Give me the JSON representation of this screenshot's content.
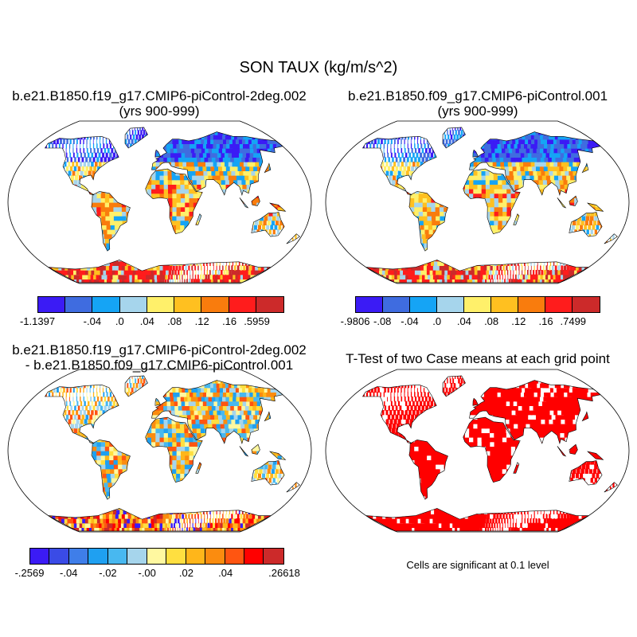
{
  "title": "SON TAUX (kg/m/s^2)",
  "panels": [
    {
      "id": "p1",
      "title_lines": [
        "b.e21.B1850.f19_g17.CMIP6-piControl-2deg.002",
        "(yrs 900-999)"
      ],
      "colorbar": {
        "colors": [
          "#3b1bf5",
          "#3f6ce0",
          "#15a4f5",
          "#a6d5ec",
          "#fff06a",
          "#ffc020",
          "#f97c0d",
          "#ff1c1c",
          "#cc2a2a"
        ],
        "labels": [
          "-1.1397",
          "-.04",
          ".0",
          ".04",
          ".08",
          ".12",
          ".16",
          ".5959"
        ]
      }
    },
    {
      "id": "p2",
      "title_lines": [
        "b.e21.B1850.f09_g17.CMIP6-piControl.001",
        "(yrs 900-999)"
      ],
      "colorbar": {
        "colors": [
          "#3b1bf5",
          "#3f6ce0",
          "#15a4f5",
          "#a6d5ec",
          "#fff06a",
          "#ffc020",
          "#f97c0d",
          "#ff1c1c",
          "#cc2a2a"
        ],
        "labels": [
          "-.9806",
          "-.08",
          "-.04",
          ".0",
          ".04",
          ".08",
          ".12",
          ".16",
          ".7499"
        ]
      }
    },
    {
      "id": "p3",
      "title_lines": [
        "b.e21.B1850.f19_g17.CMIP6-piControl-2deg.002",
        "- b.e21.B1850.f09_g17.CMIP6-piControl.001"
      ],
      "colorbar": {
        "colors": [
          "#3b1bf5",
          "#3a4be6",
          "#3f7ee9",
          "#1fa0f1",
          "#48b8f0",
          "#a6d5ec",
          "#fff8a0",
          "#ffdf40",
          "#ffb61a",
          "#fb8c0f",
          "#ff5511",
          "#ff0000",
          "#cc2a2a"
        ],
        "labels": [
          "-.2569",
          "-.04",
          "-.02",
          "-.00",
          ".02",
          ".04",
          ".26618"
        ]
      }
    },
    {
      "id": "p4",
      "title_lines": [
        "T-Test of two Case means at each grid point"
      ],
      "note": "Cells are significant at 0.1 level"
    }
  ],
  "colors": {
    "land_sig": "#ff0000",
    "outline": "#000000"
  }
}
